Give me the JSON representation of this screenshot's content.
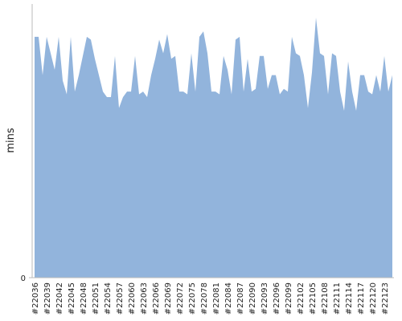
{
  "chart_data": {
    "type": "area",
    "y_label": "mins",
    "color": "#92b4dc",
    "categories": [
      "#22036",
      null,
      null,
      "#22039",
      null,
      null,
      "#22042",
      null,
      null,
      "#22045",
      null,
      null,
      "#22048",
      null,
      null,
      "#22051",
      null,
      null,
      "#22054",
      null,
      null,
      "#22057",
      null,
      null,
      "#22060",
      null,
      null,
      "#22063",
      null,
      null,
      "#22066",
      null,
      null,
      "#22069",
      null,
      null,
      "#22072",
      null,
      null,
      "#22075",
      null,
      null,
      "#22078",
      null,
      null,
      "#22081",
      null,
      null,
      "#22084",
      null,
      null,
      "#22087",
      null,
      null,
      "#22090",
      null,
      null,
      "#22093",
      null,
      null,
      "#22096",
      null,
      null,
      "#22099",
      null,
      null,
      "#22102",
      null,
      null,
      "#22105",
      null,
      null,
      "#22108",
      null,
      null,
      "#22111",
      null,
      null,
      "#22114",
      null,
      null,
      "#22117",
      null,
      null,
      "#22120",
      null,
      null,
      "#22123",
      null,
      null
    ],
    "values": [
      88,
      88,
      74,
      88,
      82,
      76,
      88,
      72,
      67,
      88,
      68,
      74,
      81,
      88,
      87,
      80,
      74,
      68,
      66,
      66,
      81,
      62,
      66,
      68,
      68,
      81,
      67,
      68,
      66,
      74,
      80,
      87,
      82,
      89,
      80,
      81,
      68,
      68,
      67,
      82,
      68,
      88,
      90,
      82,
      68,
      68,
      67,
      81,
      76,
      67,
      87,
      88,
      68,
      80,
      68,
      69,
      81,
      81,
      69,
      74,
      74,
      67,
      69,
      68,
      88,
      82,
      81,
      74,
      62,
      75,
      95,
      82,
      81,
      67,
      82,
      81,
      68,
      61,
      79,
      68,
      61,
      74,
      74,
      68,
      67,
      74,
      68,
      81,
      68,
      74
    ],
    "ylim": [
      0,
      100
    ],
    "yticks": [
      0
    ]
  }
}
